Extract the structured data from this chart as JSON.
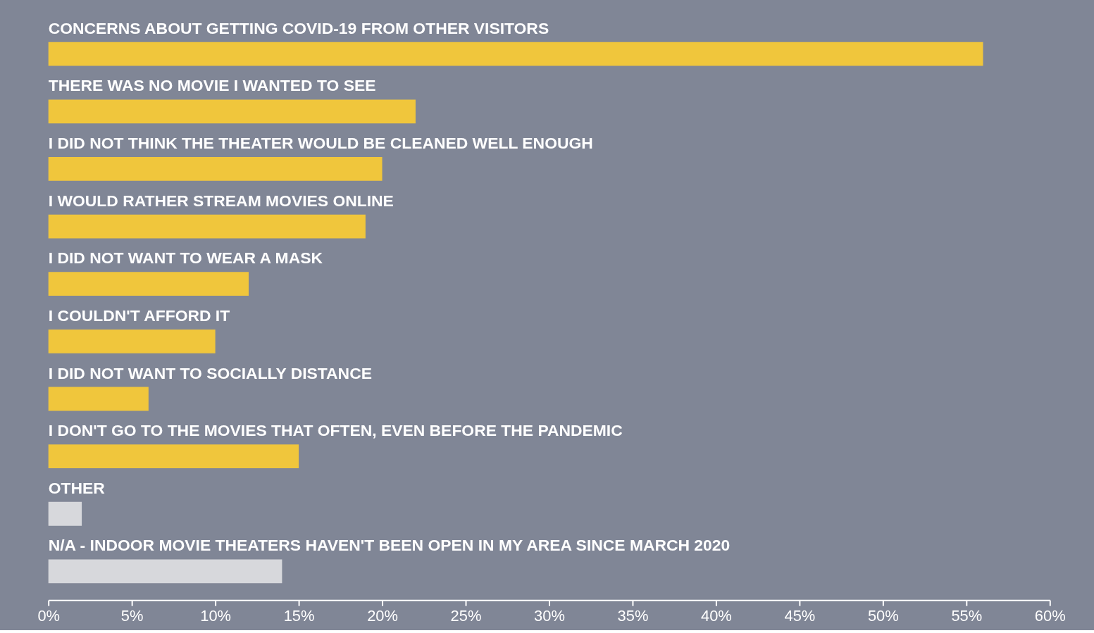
{
  "chart_data": {
    "type": "bar",
    "orientation": "horizontal",
    "categories": [
      "CONCERNS ABOUT GETTING COVID-19 FROM OTHER VISITORS",
      "THERE WAS NO MOVIE I WANTED TO SEE",
      "I DID NOT THINK THE THEATER WOULD BE CLEANED WELL ENOUGH",
      "I WOULD RATHER STREAM MOVIES ONLINE",
      "I DID NOT WANT TO WEAR A MASK",
      "I COULDN'T AFFORD IT",
      "I DID NOT WANT TO SOCIALLY DISTANCE",
      "I DON'T GO TO THE MOVIES THAT OFTEN, EVEN BEFORE THE PANDEMIC",
      "OTHER",
      "N/A - INDOOR MOVIE THEATERS HAVEN'T BEEN OPEN IN MY AREA SINCE MARCH 2020"
    ],
    "values": [
      56,
      22,
      20,
      19,
      12,
      10,
      6,
      15,
      2,
      14
    ],
    "colors": [
      "#f0c63c",
      "#f0c63c",
      "#f0c63c",
      "#f0c63c",
      "#f0c63c",
      "#f0c63c",
      "#f0c63c",
      "#f0c63c",
      "#d7d8dc",
      "#d7d8dc"
    ],
    "xlim": [
      0,
      60
    ],
    "xticks": [
      {
        "value": 0,
        "label": "0%"
      },
      {
        "value": 5,
        "label": "5%"
      },
      {
        "value": 10,
        "label": "10%"
      },
      {
        "value": 15,
        "label": "15%"
      },
      {
        "value": 20,
        "label": "20%"
      },
      {
        "value": 25,
        "label": "25%"
      },
      {
        "value": 30,
        "label": "30%"
      },
      {
        "value": 35,
        "label": "35%"
      },
      {
        "value": 40,
        "label": "40%"
      },
      {
        "value": 45,
        "label": "45%"
      },
      {
        "value": 50,
        "label": "50%"
      },
      {
        "value": 55,
        "label": "55%"
      },
      {
        "value": 60,
        "label": "60%"
      }
    ],
    "grid": false
  }
}
